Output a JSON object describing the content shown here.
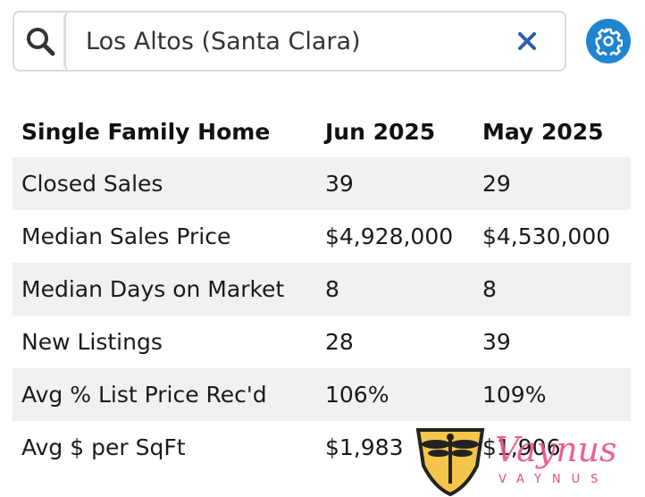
{
  "search": {
    "value": "Los Altos (Santa Clara)",
    "icon": "search-icon",
    "clear_icon": "close-icon"
  },
  "settings": {
    "icon": "gear-icon",
    "color": "#1f85d0"
  },
  "table": {
    "headers": [
      "Single Family Home",
      "Jun 2025",
      "May 2025"
    ],
    "rows": [
      [
        "Closed Sales",
        "39",
        "29"
      ],
      [
        "Median Sales Price",
        "$4,928,000",
        "$4,530,000"
      ],
      [
        "Median Days on Market",
        "8",
        "8"
      ],
      [
        "New Listings",
        "28",
        "39"
      ],
      [
        "Avg % List Price Rec'd",
        "106%",
        "109%"
      ],
      [
        "Avg $ per SqFt",
        "$1,983",
        "$1,906"
      ]
    ]
  },
  "watermark": {
    "brand": "Vaynus",
    "sub": "VAYNUS"
  }
}
